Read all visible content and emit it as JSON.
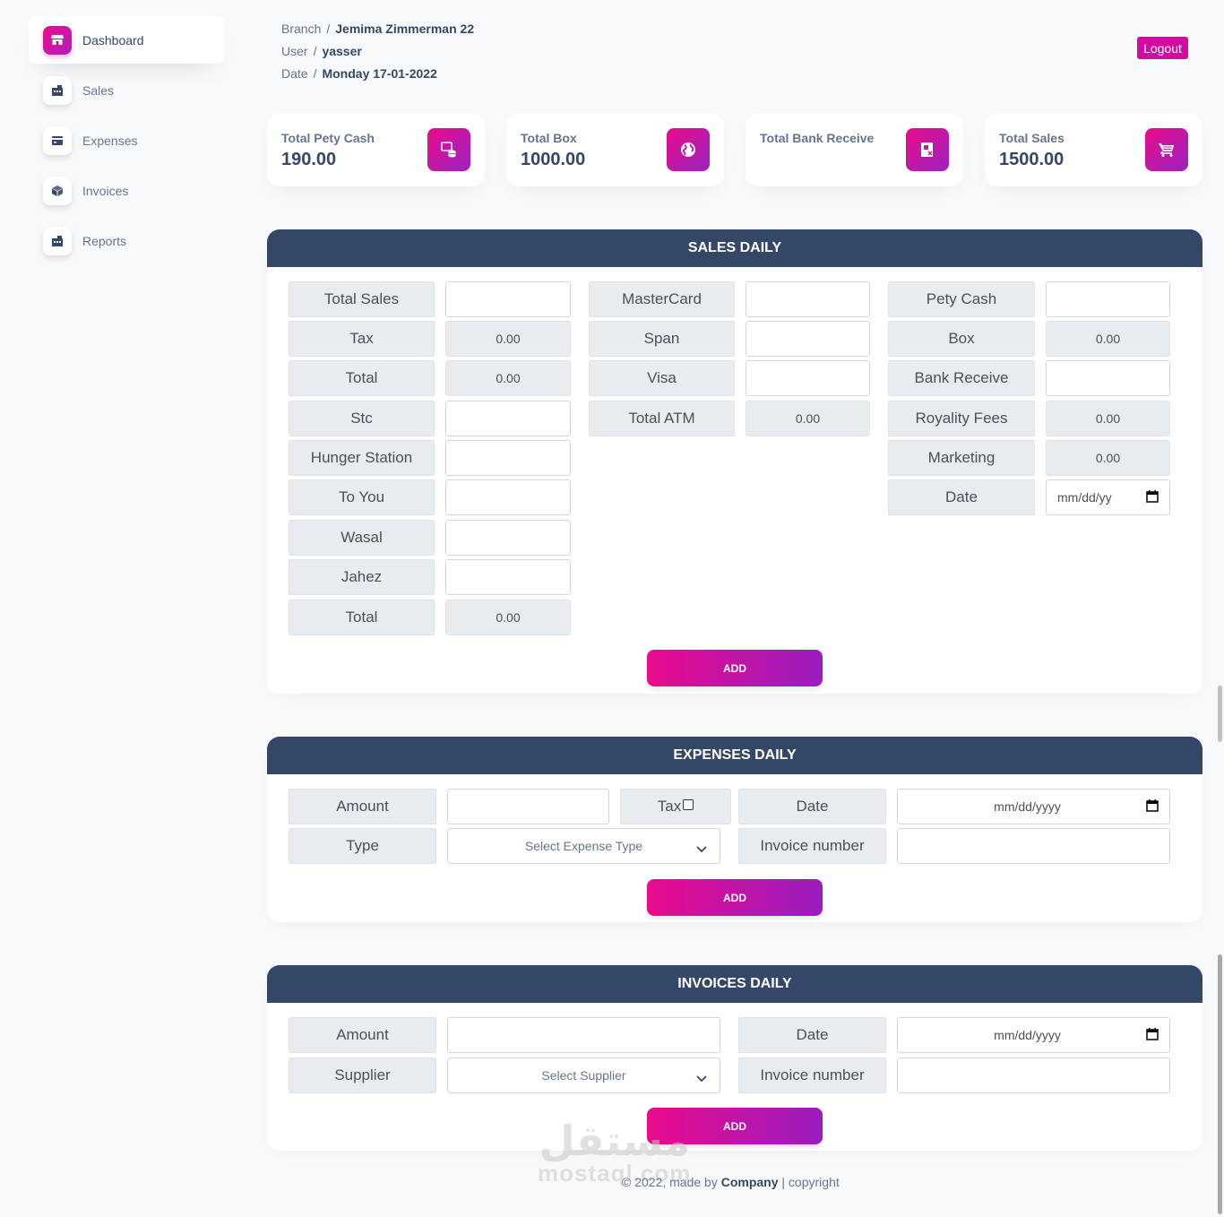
{
  "sidebar": {
    "items": [
      {
        "label": "Dashboard",
        "icon": "shop-icon",
        "active": true
      },
      {
        "label": "Sales",
        "icon": "office-icon"
      },
      {
        "label": "Expenses",
        "icon": "credit-card-icon"
      },
      {
        "label": "Invoices",
        "icon": "box-icon"
      },
      {
        "label": "Reports",
        "icon": "office-icon"
      }
    ]
  },
  "header": {
    "branch_key": "Branch",
    "branch_value": "Jemima Zimmerman 22",
    "user_key": "User",
    "user_value": "yasser",
    "date_key": "Date",
    "date_value": "Monday 17-01-2022",
    "separator": "/",
    "logout_label": "Logout"
  },
  "stats": [
    {
      "label": "Total Pety Cash",
      "value": "190.00",
      "icon": "coins-icon"
    },
    {
      "label": "Total Box",
      "value": "1000.00",
      "icon": "globe-icon"
    },
    {
      "label": "Total Bank Receive",
      "value": "",
      "icon": "receipt-icon"
    },
    {
      "label": "Total Sales",
      "value": "1500.00",
      "icon": "cart-icon"
    }
  ],
  "sales": {
    "title": "SALES DAILY",
    "col1": [
      {
        "label": "Total Sales",
        "value": ""
      },
      {
        "label": "Tax",
        "value": "0.00"
      },
      {
        "label": "Total",
        "value": "0.00"
      },
      {
        "label": "Stc",
        "value": ""
      },
      {
        "label": "Hunger Station",
        "value": ""
      },
      {
        "label": "To You",
        "value": ""
      },
      {
        "label": "Wasal",
        "value": ""
      },
      {
        "label": "Jahez",
        "value": ""
      },
      {
        "label": "Total",
        "value": "0.00"
      }
    ],
    "col2": [
      {
        "label": "MasterCard",
        "value": ""
      },
      {
        "label": "Span",
        "value": ""
      },
      {
        "label": "Visa",
        "value": ""
      },
      {
        "label": "Total ATM",
        "value": "0.00"
      }
    ],
    "col3": [
      {
        "label": "Pety Cash",
        "value": ""
      },
      {
        "label": "Box",
        "value": "0.00"
      },
      {
        "label": "Bank Receive",
        "value": ""
      },
      {
        "label": "Royality Fees",
        "value": "0.00"
      },
      {
        "label": "Marketing",
        "value": "0.00"
      },
      {
        "label": "Date",
        "value": "mm/dd/yy"
      }
    ],
    "add_label": "ADD"
  },
  "expenses": {
    "title": "EXPENSES DAILY",
    "amount_label": "Amount",
    "amount_value": "",
    "tax_label": "Tax",
    "tax_checked": false,
    "date_label": "Date",
    "date_placeholder": "mm/dd/yyyy",
    "type_label": "Type",
    "type_select": "Select Expense Type",
    "invoice_label": "Invoice number",
    "invoice_value": "",
    "add_label": "ADD"
  },
  "invoices": {
    "title": "INVOICES DAILY",
    "amount_label": "Amount",
    "amount_value": "",
    "date_label": "Date",
    "date_placeholder": "mm/dd/yyyy",
    "supplier_label": "Supplier",
    "supplier_select": "Select Supplier",
    "invoice_label": "Invoice number",
    "invoice_value": "",
    "add_label": "ADD"
  },
  "footer": {
    "prefix": "© 2022, made by",
    "company": "Company",
    "suffix": "| copyright"
  },
  "watermark": {
    "arabic": "مستقل",
    "latin": "mostaql.com"
  },
  "colors": {
    "accent": "#ea0b8c",
    "accent_end": "#9a1cbf",
    "header_bar": "#344767",
    "logout": "#d10aa0"
  }
}
